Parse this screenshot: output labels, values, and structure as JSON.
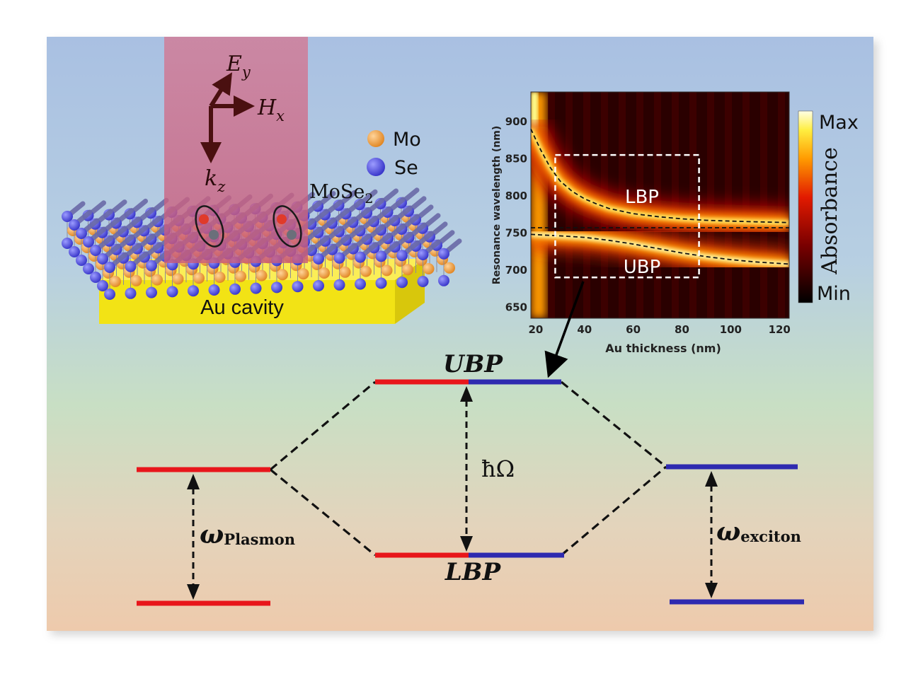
{
  "illustration": {
    "field_e": "E",
    "field_e_sub": "y",
    "field_h": "H",
    "field_h_sub": "x",
    "field_k": "k",
    "field_k_sub": "z",
    "legend_mo": "Mo",
    "legend_se": "Se",
    "material": "MoSe",
    "material_sub": "2",
    "substrate": "Au cavity",
    "colors": {
      "mo": "#f0952e",
      "se": "#4a47e0",
      "gold": "#f2e315",
      "beam": "#d06a8a"
    }
  },
  "chart_data": {
    "type": "heatmap",
    "xlabel": "Au thickness (nm)",
    "ylabel": "Resonance wavelength (nm)",
    "xlim": [
      18,
      124
    ],
    "ylim": [
      635,
      940
    ],
    "xticks": [
      20,
      40,
      60,
      80,
      100,
      120
    ],
    "yticks": [
      650,
      700,
      750,
      800,
      850,
      900
    ],
    "colorbar": {
      "label": "Absorbance",
      "max_label": "Max",
      "min_label": "Min"
    },
    "branch_labels": {
      "lbp": "LBP",
      "ubp": "UBP"
    },
    "exciton_wavelength": 757,
    "upper_branch_curve": {
      "x": [
        18,
        22,
        26,
        30,
        35,
        40,
        45,
        50,
        60,
        70,
        80,
        90,
        100,
        110,
        124
      ],
      "y": [
        890,
        862,
        838,
        820,
        806,
        796,
        789,
        783,
        776,
        772,
        769,
        767,
        766,
        765,
        764
      ]
    },
    "lower_branch_curve": {
      "x": [
        18,
        30,
        40,
        50,
        60,
        70,
        80,
        90,
        100,
        110,
        124
      ],
      "y": [
        748,
        746,
        744,
        740,
        735,
        729,
        723,
        718,
        714,
        711,
        708
      ]
    },
    "highlight_box": {
      "x_range": [
        28,
        87
      ],
      "y_range": [
        690,
        855
      ]
    }
  },
  "energy_diagram": {
    "upper_level": "UBP",
    "lower_level": "LBP",
    "splitting": "ħΩ",
    "plasmon_symbol": "ω",
    "plasmon_sub": "Plasmon",
    "exciton_symbol": "ω",
    "exciton_sub": "exciton",
    "colors": {
      "plasmon": "#e8161b",
      "exciton": "#2e2ab0"
    }
  }
}
